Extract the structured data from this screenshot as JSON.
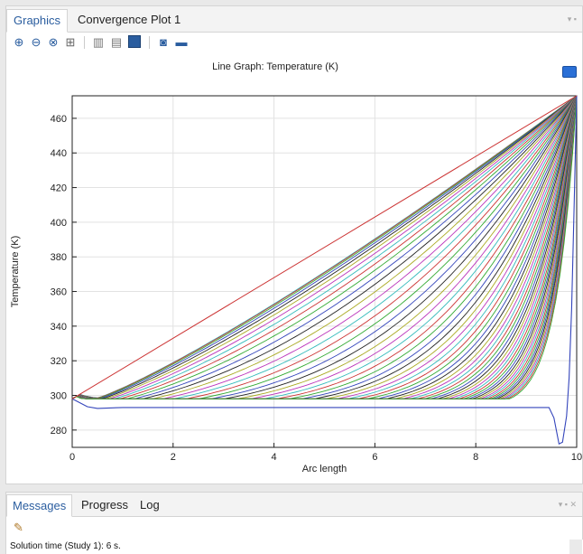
{
  "top_tabs": [
    {
      "label": "Graphics",
      "active": true
    },
    {
      "label": "Convergence Plot 1",
      "active": false
    }
  ],
  "toolbar": {
    "icons": [
      "zoom-in-icon",
      "zoom-out-icon",
      "zoom-box-icon",
      "zoom-extents-icon",
      "grid-icon",
      "legend-icon",
      "layout-icon",
      "camera-icon",
      "print-icon"
    ]
  },
  "plot_title": "Line Graph: Temperature (K)",
  "chart_data": {
    "type": "line",
    "title": "Line Graph: Temperature (K)",
    "xlabel": "Arc length",
    "ylabel": "Temperature (K)",
    "xlim": [
      0,
      10
    ],
    "ylim": [
      270,
      473
    ],
    "xticks": [
      0,
      2,
      4,
      6,
      8,
      10
    ],
    "yticks": [
      280,
      300,
      320,
      340,
      360,
      380,
      400,
      420,
      440,
      460
    ],
    "grid": true,
    "start_value": 298,
    "end_value": 473,
    "baseline_value": 293,
    "curve_count": 60,
    "first_curve": {
      "x": [
        0,
        0.3,
        0.5,
        1,
        2,
        4,
        6,
        8,
        9,
        9.3,
        9.45,
        9.55,
        9.65,
        9.72,
        9.8,
        9.85,
        9.9,
        9.95,
        10
      ],
      "y": [
        298,
        293.5,
        292.5,
        293,
        293,
        293,
        293,
        293,
        293,
        293,
        293,
        287,
        272,
        273,
        288,
        310,
        350,
        410,
        473
      ]
    },
    "colors": [
      "#3344bb",
      "#33aa33",
      "#cc3333",
      "#33bbbb",
      "#bb33bb",
      "#aaaa22",
      "#222222"
    ]
  },
  "bottom_tabs": [
    {
      "label": "Messages",
      "active": true
    },
    {
      "label": "Progress",
      "active": false
    },
    {
      "label": "Log",
      "active": false
    }
  ],
  "message": "Solution time (Study 1): 6 s."
}
